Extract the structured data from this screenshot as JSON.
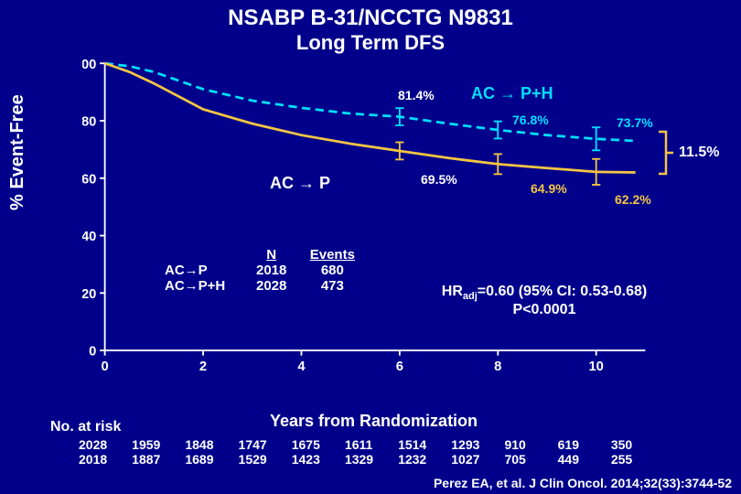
{
  "title": {
    "line1": "NSABP B-31/NCCTG N9831",
    "line2": "Long Term DFS"
  },
  "y_axis": {
    "label": "% Event-Free",
    "ticks": [
      0,
      20,
      40,
      60,
      80,
      100
    ],
    "ylim": [
      0,
      100
    ]
  },
  "x_axis": {
    "label": "Years from Randomization",
    "ticks": [
      0,
      2,
      4,
      6,
      8,
      10
    ],
    "xlim": [
      0,
      11
    ]
  },
  "colors": {
    "bg": "#00008b",
    "axis": "#ffffff",
    "series_ph": "#00e0ff",
    "series_p": "#f5c542"
  },
  "series": {
    "ph": {
      "name": "AC → P+H",
      "points": [
        [
          0,
          100
        ],
        [
          0.5,
          99
        ],
        [
          1,
          97
        ],
        [
          2,
          91
        ],
        [
          3,
          87
        ],
        [
          4,
          84.5
        ],
        [
          5,
          82.5
        ],
        [
          6,
          81.4
        ],
        [
          7,
          79
        ],
        [
          8,
          76.8
        ],
        [
          9,
          75
        ],
        [
          10,
          73.7
        ],
        [
          10.8,
          73
        ]
      ],
      "ci_marks": [
        [
          6,
          81.4,
          3
        ],
        [
          8,
          76.8,
          3
        ],
        [
          10,
          73.7,
          4
        ]
      ],
      "dash": "10 6",
      "width": 3
    },
    "p": {
      "name": "AC → P",
      "points": [
        [
          0,
          100
        ],
        [
          0.5,
          97
        ],
        [
          1,
          93
        ],
        [
          2,
          84
        ],
        [
          3,
          79
        ],
        [
          4,
          75
        ],
        [
          5,
          72
        ],
        [
          6,
          69.5
        ],
        [
          7,
          67
        ],
        [
          8,
          64.9
        ],
        [
          9,
          63.5
        ],
        [
          10,
          62.2
        ],
        [
          10.8,
          62
        ]
      ],
      "ci_marks": [
        [
          6,
          69.5,
          3
        ],
        [
          8,
          64.9,
          3.5
        ],
        [
          10,
          62.2,
          4.5
        ]
      ],
      "dash": "",
      "width": 3
    }
  },
  "point_labels": {
    "ph6": "81.4%",
    "ph8": "76.8%",
    "ph10": "73.7%",
    "p6": "69.5%",
    "p8": "64.9%",
    "p10": "62.2%"
  },
  "legend": {
    "ph": "AC → P+H",
    "p": "AC → P"
  },
  "diff": {
    "label": "11.5%"
  },
  "events_table": {
    "cols": [
      "N",
      "Events"
    ],
    "rows": [
      {
        "arm": "AC→P",
        "n": "2018",
        "ev": "680"
      },
      {
        "arm": "AC→P+H",
        "n": "2028",
        "ev": "473"
      }
    ]
  },
  "stats": {
    "line1_pre": "HR",
    "line1_sub": "adj",
    "line1_post": "=0.60 (95% CI: 0.53-0.68)",
    "line2": "P<0.0001"
  },
  "num_at_risk_label": "No. at risk",
  "risk": {
    "ph": [
      "2028",
      "1959",
      "1848",
      "1747",
      "1675",
      "1611",
      "1514",
      "1293",
      "910",
      "619",
      "350"
    ],
    "p": [
      "2018",
      "1887",
      "1689",
      "1529",
      "1423",
      "1329",
      "1232",
      "1027",
      "705",
      "449",
      "255"
    ]
  },
  "citation": "Perez EA, et al. J Clin Oncol. 2014;32(33):3744-52"
}
